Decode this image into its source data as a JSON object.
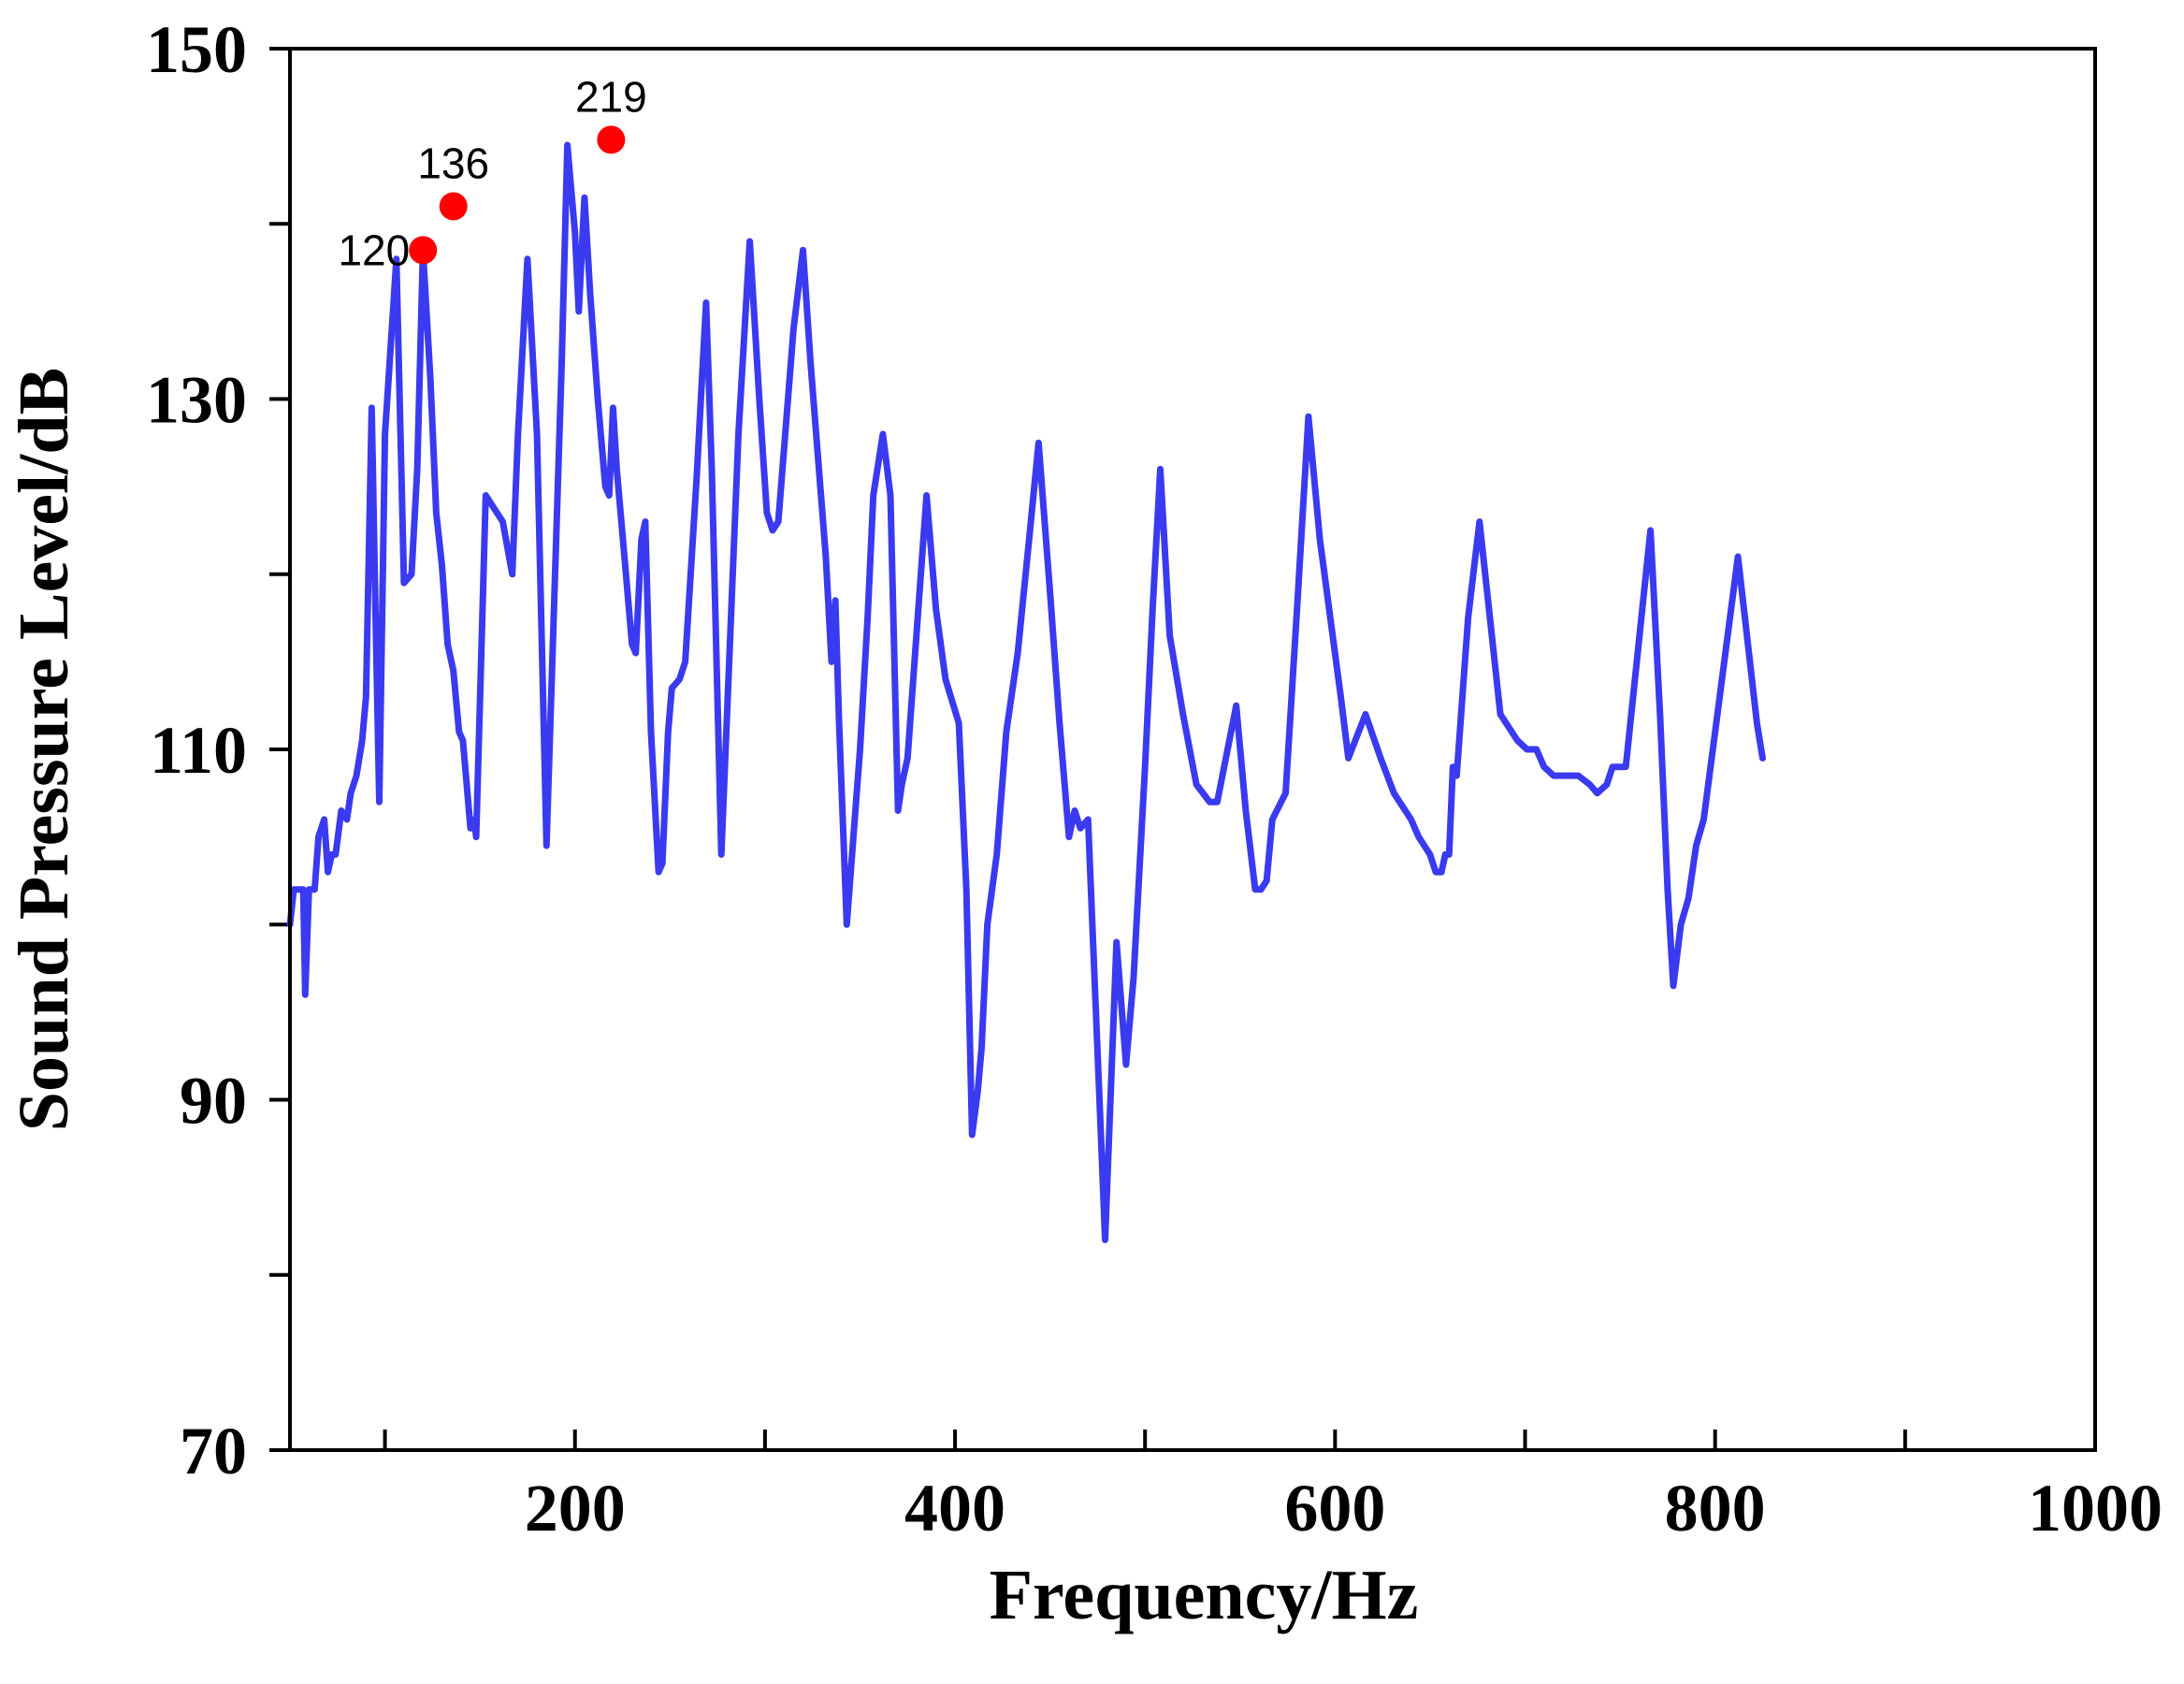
{
  "chart_data": {
    "type": "line",
    "title": "",
    "xlabel": "Frequency/Hz",
    "ylabel": "Sound Pressure Level/dB",
    "xlim": [
      50,
      1000
    ],
    "ylim": [
      70,
      150
    ],
    "x_ticks": [
      100,
      200,
      300,
      400,
      500,
      600,
      700,
      800,
      900,
      1000
    ],
    "x_tick_labels": [
      "200",
      "400",
      "600",
      "800",
      "1000"
    ],
    "x_tick_label_values": [
      200,
      400,
      600,
      800,
      1000
    ],
    "y_ticks": [
      70,
      80,
      90,
      100,
      110,
      120,
      130,
      140,
      150
    ],
    "y_tick_labels": [
      "70",
      "90",
      "110",
      "130",
      "150"
    ],
    "y_tick_label_values": [
      70,
      90,
      110,
      130,
      150
    ],
    "grid": false,
    "line_color": "#3a3af0",
    "marker_color": "#ff0000",
    "series": [
      {
        "points": [
          [
            50,
            100
          ],
          [
            52,
            102
          ],
          [
            55,
            102
          ],
          [
            57,
            102
          ],
          [
            58,
            96
          ],
          [
            60,
            102
          ],
          [
            63,
            102
          ],
          [
            65,
            105
          ],
          [
            68,
            106
          ],
          [
            70,
            103
          ],
          [
            72,
            104
          ],
          [
            74,
            104
          ],
          [
            77,
            106.5
          ],
          [
            80,
            106
          ],
          [
            82,
            107.5
          ],
          [
            85,
            108.5
          ],
          [
            88,
            110.5
          ],
          [
            90,
            113
          ],
          [
            93,
            129.5
          ],
          [
            95,
            118
          ],
          [
            97,
            107
          ],
          [
            100,
            128
          ],
          [
            103,
            133
          ],
          [
            106,
            138
          ],
          [
            110,
            119.5
          ],
          [
            114,
            120
          ],
          [
            117,
            126
          ],
          [
            120,
            138.5
          ],
          [
            124,
            131
          ],
          [
            127,
            123.5
          ],
          [
            130,
            120.5
          ],
          [
            133,
            116
          ],
          [
            136,
            114.5
          ],
          [
            139,
            111
          ],
          [
            141,
            110.5
          ],
          [
            145,
            105.5
          ],
          [
            147,
            106
          ],
          [
            148,
            105
          ],
          [
            153,
            124.5
          ],
          [
            162,
            123
          ],
          [
            167,
            120
          ],
          [
            170,
            128
          ],
          [
            175,
            138
          ],
          [
            180,
            128
          ],
          [
            185,
            104.5
          ],
          [
            193,
            132
          ],
          [
            196,
            144.5
          ],
          [
            200,
            139.5
          ],
          [
            202,
            135
          ],
          [
            205,
            141.5
          ],
          [
            208,
            136
          ],
          [
            212,
            130
          ],
          [
            216,
            125
          ],
          [
            218,
            124.5
          ],
          [
            220,
            129.5
          ],
          [
            222,
            126
          ],
          [
            226,
            121
          ],
          [
            230,
            116
          ],
          [
            232,
            115.5
          ],
          [
            235,
            122
          ],
          [
            237,
            123
          ],
          [
            240,
            111
          ],
          [
            244,
            103
          ],
          [
            246,
            103.5
          ],
          [
            249,
            111
          ],
          [
            251,
            113.5
          ],
          [
            255,
            114
          ],
          [
            258,
            115
          ],
          [
            264,
            125.5
          ],
          [
            269,
            135.5
          ],
          [
            272,
            126
          ],
          [
            277,
            104
          ],
          [
            286,
            128
          ],
          [
            292,
            139
          ],
          [
            297,
            130
          ],
          [
            301,
            123.5
          ],
          [
            304,
            122.5
          ],
          [
            307,
            123
          ],
          [
            315,
            134
          ],
          [
            320,
            138.5
          ],
          [
            324,
            132
          ],
          [
            332,
            121
          ],
          [
            335,
            115
          ],
          [
            337,
            118.5
          ],
          [
            339,
            111.5
          ],
          [
            343,
            100
          ],
          [
            350,
            110
          ],
          [
            354,
            117.5
          ],
          [
            357,
            124.5
          ],
          [
            362,
            128
          ],
          [
            366,
            124.5
          ],
          [
            370,
            106.5
          ],
          [
            372,
            108
          ],
          [
            375,
            109.5
          ],
          [
            385,
            124.5
          ],
          [
            390,
            118
          ],
          [
            395,
            114
          ],
          [
            402,
            111.5
          ],
          [
            406,
            102
          ],
          [
            409,
            88
          ],
          [
            412,
            90.5
          ],
          [
            414,
            93
          ],
          [
            417,
            100
          ],
          [
            422,
            104
          ],
          [
            427,
            111
          ],
          [
            433,
            115.5
          ],
          [
            439,
            122
          ],
          [
            444,
            127.5
          ],
          [
            450,
            119
          ],
          [
            455,
            111.5
          ],
          [
            460,
            105
          ],
          [
            463,
            106.5
          ],
          [
            466,
            105.5
          ],
          [
            470,
            106
          ],
          [
            476,
            90
          ],
          [
            479,
            82
          ],
          [
            485,
            99
          ],
          [
            490,
            92
          ],
          [
            494,
            97
          ],
          [
            500,
            109
          ],
          [
            504,
            118
          ],
          [
            508,
            126
          ],
          [
            513,
            116.5
          ],
          [
            520,
            112
          ],
          [
            527,
            108
          ],
          [
            534,
            107
          ],
          [
            538,
            107
          ],
          [
            548,
            112.5
          ],
          [
            553,
            106.5
          ],
          [
            558,
            102
          ],
          [
            561,
            102
          ],
          [
            564,
            102.5
          ],
          [
            567,
            106
          ],
          [
            574,
            107.5
          ],
          [
            580,
            118
          ],
          [
            586,
            129
          ],
          [
            592,
            122
          ],
          [
            603,
            113
          ],
          [
            607,
            109.5
          ],
          [
            616,
            112
          ],
          [
            624,
            109.5
          ],
          [
            631,
            107.5
          ],
          [
            637,
            106.5
          ],
          [
            640,
            106
          ],
          [
            644,
            105
          ],
          [
            650,
            104
          ],
          [
            653,
            103
          ],
          [
            656,
            103
          ],
          [
            658,
            104
          ],
          [
            660,
            104
          ],
          [
            662,
            109
          ],
          [
            664,
            108.5
          ],
          [
            670,
            117.5
          ],
          [
            676,
            123
          ],
          [
            687,
            112
          ],
          [
            696,
            110.5
          ],
          [
            701,
            110
          ],
          [
            703,
            110
          ],
          [
            706,
            110
          ],
          [
            710,
            109
          ],
          [
            715,
            108.5
          ],
          [
            722,
            108.5
          ],
          [
            728,
            108.5
          ],
          [
            734,
            108
          ],
          [
            738,
            107.5
          ],
          [
            743,
            108
          ],
          [
            746,
            109
          ],
          [
            753,
            109
          ],
          [
            766,
            122.5
          ],
          [
            771,
            112
          ],
          [
            775,
            102
          ],
          [
            778,
            96.5
          ],
          [
            782,
            100
          ],
          [
            786,
            101.5
          ],
          [
            790,
            104.5
          ],
          [
            794,
            106
          ],
          [
            800,
            111
          ],
          [
            812,
            121
          ],
          [
            822,
            111.5
          ],
          [
            825,
            109.5
          ]
        ]
      }
    ],
    "annotations": [
      {
        "label": "120",
        "x": 120,
        "y": 138.5
      },
      {
        "label": "136",
        "x": 136,
        "y": 141
      },
      {
        "label": "219",
        "x": 219,
        "y": 144.8
      }
    ]
  }
}
